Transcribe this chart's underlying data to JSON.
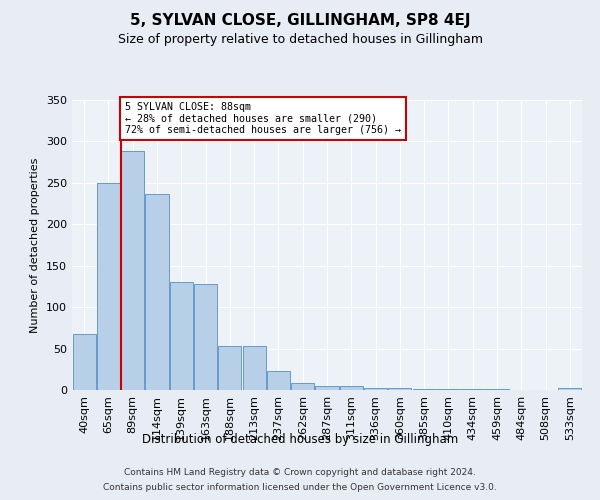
{
  "title": "5, SYLVAN CLOSE, GILLINGHAM, SP8 4EJ",
  "subtitle": "Size of property relative to detached houses in Gillingham",
  "xlabel": "Distribution of detached houses by size in Gillingham",
  "ylabel": "Number of detached properties",
  "categories": [
    "40sqm",
    "65sqm",
    "89sqm",
    "114sqm",
    "139sqm",
    "163sqm",
    "188sqm",
    "213sqm",
    "237sqm",
    "262sqm",
    "287sqm",
    "311sqm",
    "336sqm",
    "360sqm",
    "385sqm",
    "410sqm",
    "434sqm",
    "459sqm",
    "484sqm",
    "508sqm",
    "533sqm"
  ],
  "values": [
    68,
    250,
    288,
    236,
    130,
    128,
    53,
    53,
    23,
    9,
    5,
    5,
    3,
    3,
    1,
    1,
    1,
    1,
    0,
    0,
    3
  ],
  "bar_color": "#b8cfe8",
  "bar_edge_color": "#6699cc",
  "vline_x": 1.5,
  "vline_color": "#cc0000",
  "annotation_text": "5 SYLVAN CLOSE: 88sqm\n← 28% of detached houses are smaller (290)\n72% of semi-detached houses are larger (756) →",
  "annotation_box_color": "#ffffff",
  "annotation_box_edge": "#cc0000",
  "ylim": [
    0,
    350
  ],
  "yticks": [
    0,
    50,
    100,
    150,
    200,
    250,
    300,
    350
  ],
  "footer1": "Contains HM Land Registry data © Crown copyright and database right 2024.",
  "footer2": "Contains public sector information licensed under the Open Government Licence v3.0.",
  "bg_color": "#e8edf5",
  "plot_bg_color": "#edf1f8"
}
